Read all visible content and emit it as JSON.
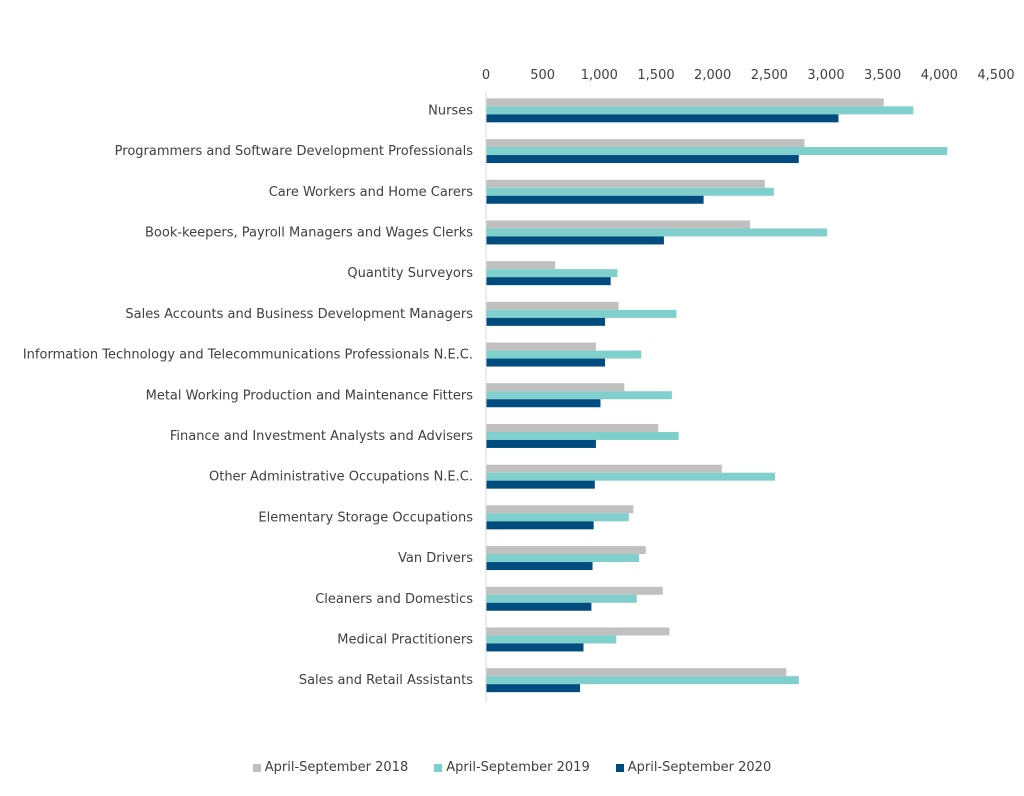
{
  "chart_data": {
    "type": "bar",
    "orientation": "horizontal",
    "categories": [
      "Nurses",
      "Programmers and Software Development Professionals",
      "Care Workers and Home Carers",
      "Book-keepers, Payroll Managers and Wages Clerks",
      "Quantity Surveyors",
      "Sales Accounts and Business Development Managers",
      "Information Technology and Telecommunications Professionals N.E.C.",
      "Metal Working Production and Maintenance Fitters",
      "Finance and Investment Analysts and Advisers",
      "Other Administrative Occupations N.E.C.",
      "Elementary Storage Occupations",
      "Van Drivers",
      "Cleaners and Domestics",
      "Medical Practitioners",
      "Sales and Retail Assistants"
    ],
    "series": [
      {
        "name": "April-September 2018",
        "color": "#c0c0c0",
        "values": [
          3510,
          2810,
          2460,
          2330,
          610,
          1170,
          970,
          1220,
          1520,
          2080,
          1300,
          1410,
          1560,
          1620,
          2650
        ]
      },
      {
        "name": "April-September 2019",
        "color": "#7fcfcc",
        "values": [
          3770,
          4070,
          2540,
          3010,
          1160,
          1680,
          1370,
          1640,
          1700,
          2550,
          1260,
          1350,
          1330,
          1150,
          2760
        ]
      },
      {
        "name": "April-September 2020",
        "color": "#004c7f",
        "values": [
          3110,
          2760,
          1920,
          1570,
          1100,
          1050,
          1050,
          1010,
          970,
          960,
          950,
          940,
          930,
          860,
          830
        ]
      }
    ],
    "x_ticks": [
      "0",
      "500",
      "1,000",
      "1,500",
      "2,000",
      "2,500",
      "3,000",
      "3,500",
      "4,000",
      "4,500"
    ],
    "xlim": [
      0,
      4500
    ],
    "axis_position": "top",
    "grid": false,
    "legend_position": "bottom"
  }
}
